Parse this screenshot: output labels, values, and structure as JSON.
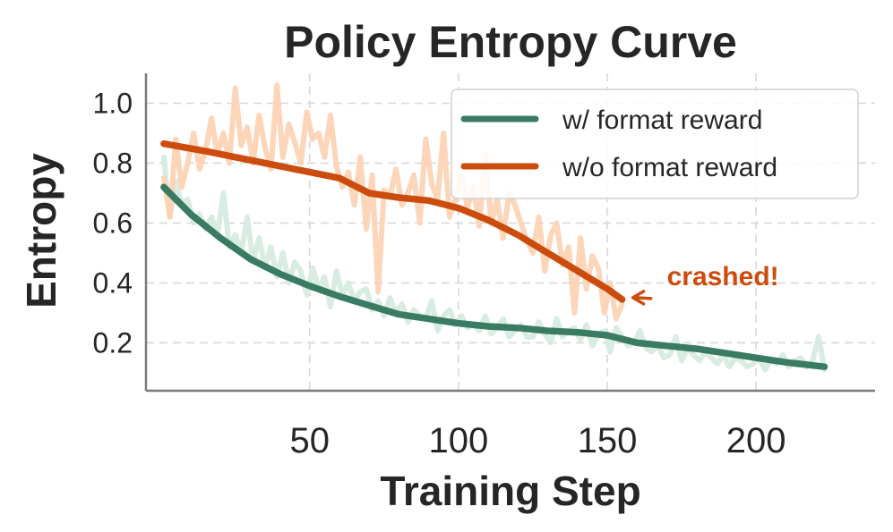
{
  "chart_data": {
    "type": "line",
    "title": "Policy Entropy Curve",
    "xlabel": "Training Step",
    "ylabel": "Entropy",
    "xlim": [
      -5,
      240
    ],
    "ylim": [
      0.04,
      1.1
    ],
    "xticks": [
      50,
      100,
      150,
      200
    ],
    "yticks": [
      0.2,
      0.4,
      0.6,
      0.8,
      1.0
    ],
    "ytick_labels": [
      "0.2",
      "0.4",
      "0.6",
      "0.8",
      "1.0"
    ],
    "xtick_labels": [
      "50",
      "100",
      "150",
      "200"
    ],
    "grid": true,
    "legend_position": "top-right",
    "series": [
      {
        "name": "w/ format reward",
        "color": "#3a7b63",
        "raw_color": "#d6ebe0",
        "x": [
          1,
          3,
          5,
          7,
          9,
          11,
          13,
          15,
          17,
          19,
          21,
          23,
          25,
          27,
          29,
          31,
          33,
          35,
          37,
          39,
          41,
          43,
          45,
          47,
          49,
          51,
          53,
          55,
          57,
          59,
          61,
          63,
          65,
          67,
          69,
          71,
          73,
          75,
          77,
          79,
          81,
          83,
          85,
          87,
          89,
          91,
          93,
          95,
          97,
          99,
          101,
          103,
          105,
          107,
          109,
          111,
          113,
          115,
          117,
          119,
          121,
          123,
          125,
          127,
          129,
          131,
          133,
          135,
          137,
          139,
          141,
          143,
          145,
          147,
          149,
          151,
          153,
          155,
          157,
          159,
          161,
          163,
          165,
          167,
          169,
          171,
          173,
          175,
          177,
          179,
          181,
          183,
          185,
          187,
          189,
          191,
          193,
          195,
          197,
          199,
          201,
          203,
          205,
          207,
          209,
          211,
          213,
          215,
          217,
          219,
          221,
          223
        ],
        "raw_y": [
          0.82,
          0.62,
          0.74,
          0.66,
          0.68,
          0.6,
          0.63,
          0.58,
          0.62,
          0.56,
          0.7,
          0.52,
          0.56,
          0.5,
          0.62,
          0.47,
          0.55,
          0.45,
          0.52,
          0.42,
          0.5,
          0.4,
          0.47,
          0.44,
          0.36,
          0.45,
          0.38,
          0.42,
          0.32,
          0.44,
          0.36,
          0.4,
          0.34,
          0.37,
          0.38,
          0.31,
          0.34,
          0.29,
          0.35,
          0.3,
          0.33,
          0.27,
          0.31,
          0.29,
          0.28,
          0.34,
          0.24,
          0.29,
          0.31,
          0.26,
          0.29,
          0.25,
          0.26,
          0.24,
          0.29,
          0.23,
          0.25,
          0.28,
          0.22,
          0.24,
          0.26,
          0.22,
          0.22,
          0.27,
          0.23,
          0.2,
          0.28,
          0.22,
          0.24,
          0.25,
          0.21,
          0.26,
          0.19,
          0.23,
          0.24,
          0.17,
          0.25,
          0.22,
          0.19,
          0.2,
          0.24,
          0.18,
          0.17,
          0.19,
          0.15,
          0.16,
          0.22,
          0.14,
          0.18,
          0.16,
          0.14,
          0.17,
          0.15,
          0.13,
          0.16,
          0.12,
          0.15,
          0.14,
          0.12,
          0.13,
          0.15,
          0.11,
          0.14,
          0.13,
          0.16,
          0.12,
          0.14,
          0.15,
          0.12,
          0.14,
          0.22,
          0.11
        ],
        "smooth_x": [
          1,
          10,
          20,
          30,
          40,
          50,
          60,
          70,
          80,
          90,
          100,
          110,
          120,
          130,
          140,
          150,
          160,
          170,
          180,
          190,
          200,
          210,
          223
        ],
        "smooth_y": [
          0.72,
          0.63,
          0.55,
          0.48,
          0.43,
          0.39,
          0.355,
          0.325,
          0.295,
          0.28,
          0.265,
          0.255,
          0.25,
          0.24,
          0.235,
          0.225,
          0.2,
          0.19,
          0.18,
          0.165,
          0.15,
          0.135,
          0.12
        ]
      },
      {
        "name": "w/o format reward",
        "color": "#cc4c0e",
        "raw_color": "#fdd3b4",
        "x": [
          1,
          3,
          5,
          7,
          9,
          11,
          13,
          15,
          17,
          19,
          21,
          23,
          25,
          27,
          29,
          31,
          33,
          35,
          37,
          39,
          41,
          43,
          45,
          47,
          49,
          51,
          53,
          55,
          57,
          59,
          61,
          63,
          65,
          67,
          69,
          71,
          73,
          75,
          77,
          79,
          81,
          83,
          85,
          87,
          89,
          91,
          93,
          95,
          97,
          99,
          101,
          103,
          105,
          107,
          109,
          111,
          113,
          115,
          117,
          119,
          121,
          123,
          125,
          127,
          129,
          131,
          133,
          135,
          137,
          139,
          141,
          143,
          145,
          147,
          149,
          151,
          153,
          155
        ],
        "raw_y": [
          0.75,
          0.62,
          0.88,
          0.72,
          0.8,
          0.9,
          0.78,
          0.84,
          0.95,
          0.83,
          0.9,
          0.8,
          1.05,
          0.86,
          0.92,
          0.8,
          0.96,
          0.85,
          0.78,
          1.06,
          0.82,
          0.93,
          0.87,
          0.8,
          0.97,
          0.88,
          0.9,
          0.82,
          0.96,
          0.79,
          0.72,
          0.77,
          0.66,
          0.82,
          0.58,
          0.76,
          0.37,
          0.71,
          0.69,
          0.78,
          0.66,
          0.7,
          0.76,
          0.6,
          0.88,
          0.73,
          0.68,
          0.9,
          0.62,
          0.68,
          0.76,
          0.65,
          0.72,
          0.59,
          0.83,
          0.6,
          0.68,
          0.55,
          0.7,
          0.66,
          0.6,
          0.54,
          0.5,
          0.62,
          0.44,
          0.56,
          0.6,
          0.46,
          0.52,
          0.3,
          0.55,
          0.38,
          0.49,
          0.45,
          0.3,
          0.4,
          0.28,
          0.33
        ],
        "smooth_x": [
          1,
          15,
          30,
          45,
          60,
          70,
          80,
          90,
          100,
          110,
          120,
          130,
          140,
          150,
          155
        ],
        "smooth_y": [
          0.865,
          0.84,
          0.81,
          0.78,
          0.75,
          0.7,
          0.685,
          0.675,
          0.65,
          0.61,
          0.56,
          0.5,
          0.44,
          0.38,
          0.345
        ]
      }
    ],
    "annotations": [
      {
        "text": "crashed!",
        "x": 155,
        "y": 0.345,
        "color": "#cc4c0e"
      }
    ]
  }
}
